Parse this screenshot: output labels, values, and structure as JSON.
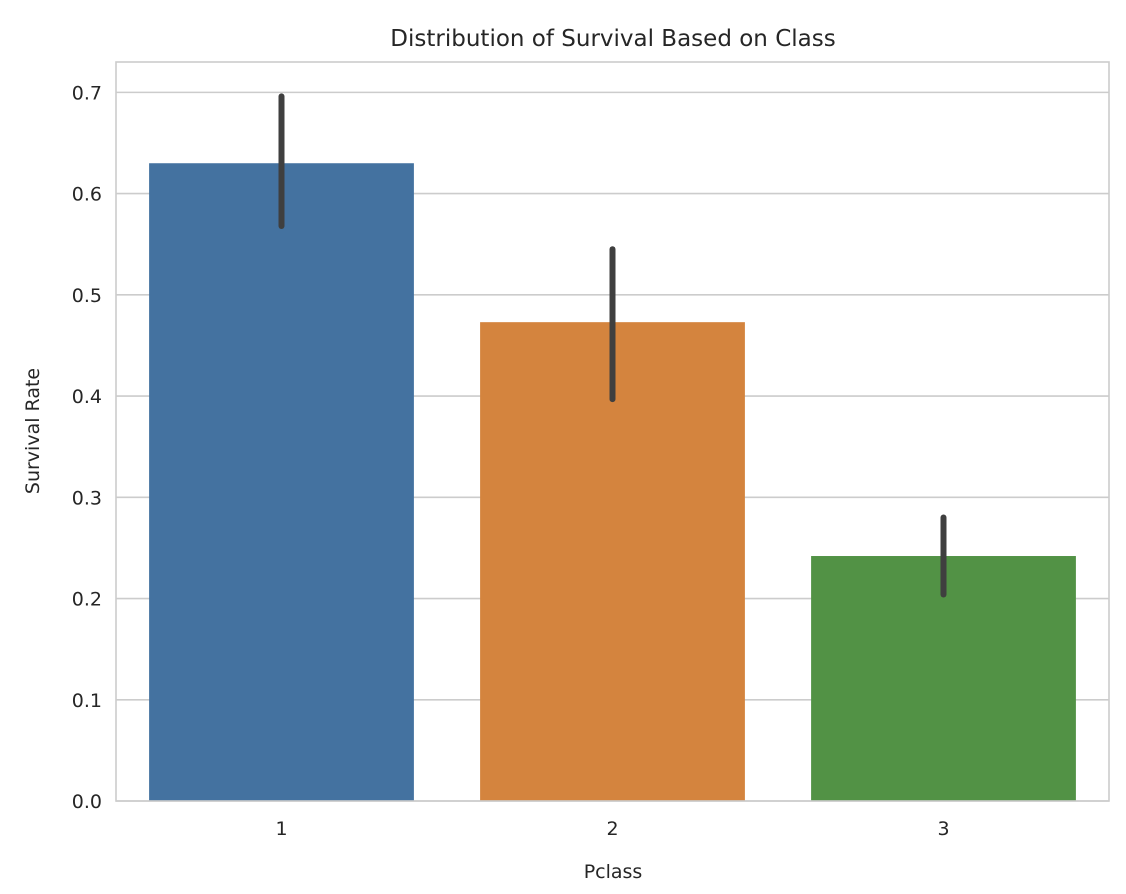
{
  "chart_data": {
    "type": "bar",
    "title": "Distribution of Survival Based on Class",
    "xlabel": "Pclass",
    "ylabel": "Survival Rate",
    "categories": [
      "1",
      "2",
      "3"
    ],
    "values": [
      0.63,
      0.473,
      0.242
    ],
    "error_bars": [
      {
        "low": 0.568,
        "high": 0.696
      },
      {
        "low": 0.397,
        "high": 0.545
      },
      {
        "low": 0.204,
        "high": 0.28
      }
    ],
    "colors": [
      "#4472a0",
      "#d4843e",
      "#529245"
    ],
    "error_color": "#3f3f3f",
    "ylim": [
      0,
      0.73
    ],
    "yticks": [
      0.0,
      0.1,
      0.2,
      0.3,
      0.4,
      0.5,
      0.6,
      0.7
    ],
    "ytick_labels": [
      "0.0",
      "0.1",
      "0.2",
      "0.3",
      "0.4",
      "0.5",
      "0.6",
      "0.7"
    ],
    "grid": "horizontal",
    "legend": "none"
  }
}
